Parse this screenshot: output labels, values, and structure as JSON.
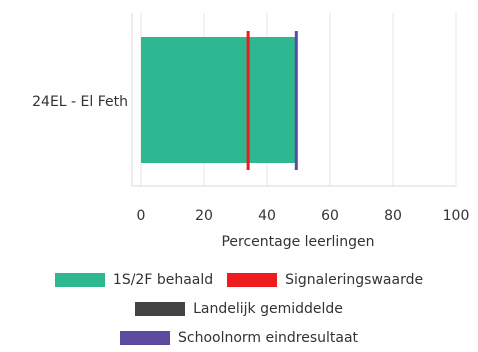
{
  "chart_data": {
    "type": "bar",
    "orientation": "horizontal",
    "categories": [
      "24EL - El Feth"
    ],
    "series": [
      {
        "name": "1S/2F behaald",
        "values": [
          49
        ],
        "color": "#2db892",
        "kind": "bar"
      },
      {
        "name": "Signaleringswaarde",
        "values": [
          34
        ],
        "color": "#ee1c1c",
        "kind": "marker"
      },
      {
        "name": "Landelijk gemiddelde",
        "values": [
          null
        ],
        "color": "#444444",
        "kind": "marker"
      },
      {
        "name": "Schoolnorm eindresultaat",
        "values": [
          49.3
        ],
        "color": "#5b4a9e",
        "kind": "marker"
      }
    ],
    "xlabel": "Percentage leerlingen",
    "ylabel": "",
    "xlim": [
      0,
      100
    ],
    "xticks": [
      "0",
      "20",
      "40",
      "60",
      "80",
      "100"
    ],
    "grid": true,
    "legend_position": "bottom"
  }
}
